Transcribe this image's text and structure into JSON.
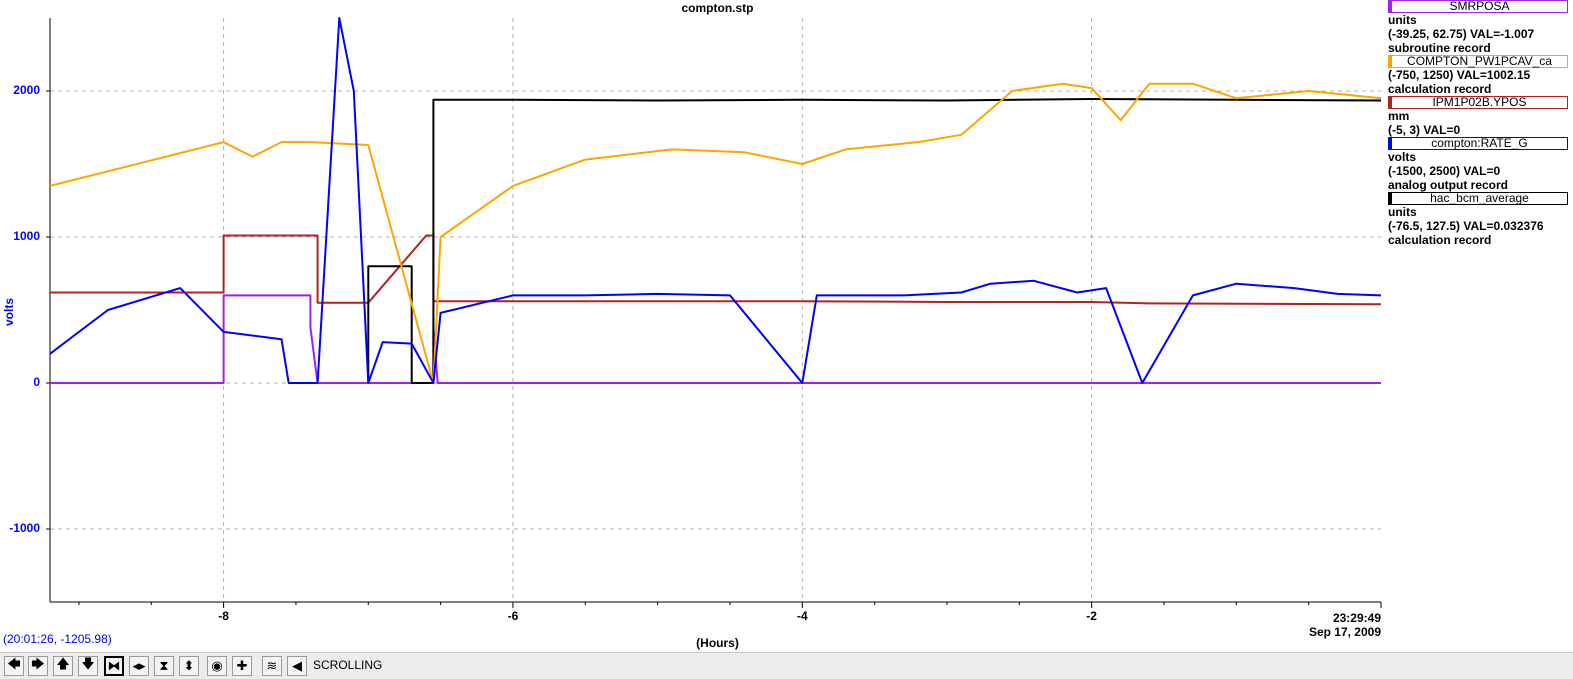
{
  "title": "compton.stp",
  "ylabel": "volts",
  "xlabel": "(Hours)",
  "timestamp": {
    "time": "23:29:49",
    "date": "Sep 17, 2009"
  },
  "cursor_readout": "(20:01:26, -1205.98)",
  "legend": [
    {
      "name": "SMRPOSA",
      "color": "#a020f0",
      "unit": "units",
      "range": "(-39.25, 62.75) VAL=-1.007",
      "rtype": "subroutine record"
    },
    {
      "name": "COMPTON_PW1PCAV_ca",
      "color": "#ffa500",
      "unit": "",
      "range": "(-750, 1250) VAL=1002.15",
      "rtype": "calculation record"
    },
    {
      "name": "IPM1P02B.YPOS",
      "color": "#b22222",
      "unit": "mm",
      "range": "(-5, 3) VAL=0",
      "rtype": ""
    },
    {
      "name": "compton:RATE_G",
      "color": "#0000ff",
      "unit": "volts",
      "range": "(-1500, 2500) VAL=0",
      "rtype": "analog output record"
    },
    {
      "name": "hac_bcm_average",
      "color": "#000000",
      "unit": "units",
      "range": "(-76.5, 127.5) VAL=0.032376",
      "rtype": "calculation record"
    }
  ],
  "toolbar": {
    "status": "SCROLLING",
    "buttons": [
      {
        "name": "scroll-left-button",
        "icon": "arrow-left-icon",
        "glyph": "🡄"
      },
      {
        "name": "scroll-right-button",
        "icon": "arrow-right-icon",
        "glyph": "🡆"
      },
      {
        "name": "scroll-up-button",
        "icon": "arrow-up-icon",
        "glyph": "🡅"
      },
      {
        "name": "scroll-down-button",
        "icon": "arrow-down-icon",
        "glyph": "🡇"
      },
      {
        "name": "zoom-in-xy-button",
        "icon": "zoom-in-icon",
        "glyph": "⧓"
      },
      {
        "name": "zoom-out-x-button",
        "icon": "zoom-out-x-icon",
        "glyph": "◂▸"
      },
      {
        "name": "zoom-in-y-button",
        "icon": "zoom-in-y-icon",
        "glyph": "⧗"
      },
      {
        "name": "zoom-out-y-button",
        "icon": "zoom-out-y-icon",
        "glyph": "⬍"
      },
      {
        "name": "autoscale-button",
        "icon": "circle-target-icon",
        "glyph": "◉"
      },
      {
        "name": "add-marker-button",
        "icon": "plus-icon",
        "glyph": "✚"
      },
      {
        "name": "waveform-button",
        "icon": "wave-icon",
        "glyph": "≋"
      },
      {
        "name": "pause-scrolling-button",
        "icon": "rewind-icon",
        "glyph": "◀"
      }
    ]
  },
  "chart_data": {
    "type": "line",
    "title": "compton.stp",
    "xlabel": "(Hours)",
    "ylabel": "volts",
    "xlim": [
      -9.2,
      0
    ],
    "ylim": [
      -1500,
      2500
    ],
    "xticks": [
      -8,
      -6,
      -4,
      -2
    ],
    "yticks": [
      -1000,
      0,
      1000,
      2000
    ],
    "grid": true,
    "legend_position": "right",
    "series": [
      {
        "name": "SMRPOSA",
        "color": "#a020f0",
        "points": [
          [
            -9.2,
            0
          ],
          [
            -8.0,
            0
          ],
          [
            -8.0,
            600
          ],
          [
            -7.4,
            600
          ],
          [
            -7.4,
            380
          ],
          [
            -7.35,
            0
          ],
          [
            -6.55,
            0
          ],
          [
            -6.55,
            380
          ],
          [
            -6.52,
            0
          ],
          [
            0,
            0
          ]
        ]
      },
      {
        "name": "IPM1P02B.YPOS",
        "color": "#b22222",
        "points": [
          [
            -9.2,
            620
          ],
          [
            -8.0,
            620
          ],
          [
            -8.0,
            1010
          ],
          [
            -7.55,
            1010
          ],
          [
            -7.55,
            1010
          ],
          [
            -7.35,
            1010
          ],
          [
            -7.35,
            550
          ],
          [
            -7.0,
            550
          ],
          [
            -6.6,
            1010
          ],
          [
            -6.55,
            1010
          ],
          [
            -6.55,
            560
          ],
          [
            -4.0,
            560
          ],
          [
            -3.0,
            555
          ],
          [
            -2.0,
            555
          ],
          [
            -1.6,
            545
          ],
          [
            0,
            540
          ]
        ]
      },
      {
        "name": "hac_bcm_average",
        "color": "#000000",
        "points": [
          [
            -7.0,
            0
          ],
          [
            -7.0,
            800
          ],
          [
            -6.7,
            800
          ],
          [
            -6.7,
            0
          ],
          [
            -6.55,
            0
          ],
          [
            -6.55,
            1940
          ],
          [
            -6.0,
            1940
          ],
          [
            -5.0,
            1935
          ],
          [
            -4.0,
            1940
          ],
          [
            -3.0,
            1935
          ],
          [
            -2.0,
            1945
          ],
          [
            -1.0,
            1940
          ],
          [
            0,
            1935
          ]
        ]
      },
      {
        "name": "COMPTON_PW1PCAV_ca",
        "color": "#ffa500",
        "points": [
          [
            -9.2,
            1350
          ],
          [
            -8.0,
            1650
          ],
          [
            -7.8,
            1550
          ],
          [
            -7.6,
            1650
          ],
          [
            -7.4,
            1650
          ],
          [
            -7.0,
            1630
          ],
          [
            -6.55,
            0
          ],
          [
            -6.5,
            1000
          ],
          [
            -6.0,
            1350
          ],
          [
            -5.5,
            1530
          ],
          [
            -4.9,
            1600
          ],
          [
            -4.4,
            1580
          ],
          [
            -4.0,
            1500
          ],
          [
            -3.7,
            1600
          ],
          [
            -3.2,
            1650
          ],
          [
            -2.9,
            1700
          ],
          [
            -2.55,
            2000
          ],
          [
            -2.2,
            2050
          ],
          [
            -2.0,
            2020
          ],
          [
            -1.8,
            1800
          ],
          [
            -1.6,
            2050
          ],
          [
            -1.3,
            2050
          ],
          [
            -1.0,
            1950
          ],
          [
            -0.5,
            2000
          ],
          [
            0,
            1950
          ]
        ]
      },
      {
        "name": "compton:RATE_G",
        "color": "#0000ff",
        "points": [
          [
            -9.2,
            200
          ],
          [
            -8.8,
            500
          ],
          [
            -8.3,
            650
          ],
          [
            -8.0,
            350
          ],
          [
            -7.6,
            300
          ],
          [
            -7.55,
            0
          ],
          [
            -7.35,
            0
          ],
          [
            -7.2,
            2500
          ],
          [
            -7.1,
            2000
          ],
          [
            -7.0,
            0
          ],
          [
            -6.9,
            280
          ],
          [
            -6.7,
            270
          ],
          [
            -6.55,
            0
          ],
          [
            -6.5,
            480
          ],
          [
            -6.0,
            600
          ],
          [
            -5.5,
            600
          ],
          [
            -5.0,
            610
          ],
          [
            -4.5,
            600
          ],
          [
            -4.0,
            0
          ],
          [
            -3.9,
            600
          ],
          [
            -3.3,
            600
          ],
          [
            -2.9,
            620
          ],
          [
            -2.7,
            680
          ],
          [
            -2.4,
            700
          ],
          [
            -2.1,
            620
          ],
          [
            -1.9,
            650
          ],
          [
            -1.65,
            0
          ],
          [
            -1.3,
            600
          ],
          [
            -1.0,
            680
          ],
          [
            -0.6,
            650
          ],
          [
            -0.3,
            610
          ],
          [
            0,
            600
          ]
        ]
      }
    ]
  }
}
